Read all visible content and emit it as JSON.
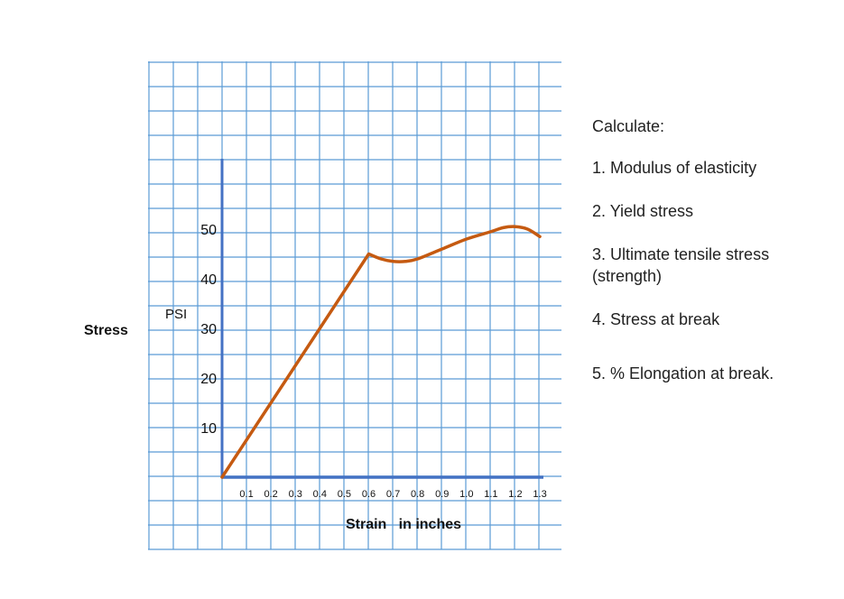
{
  "chart_data": {
    "type": "line",
    "x": [
      0,
      0.6,
      0.65,
      0.7,
      0.75,
      0.8,
      0.9,
      1.0,
      1.1,
      1.15,
      1.2,
      1.25,
      1.3
    ],
    "series": [
      {
        "values": [
          0,
          45,
          44,
          43.5,
          43.5,
          44,
          46,
          48,
          49.5,
          50.3,
          50.5,
          50,
          48.5
        ]
      }
    ],
    "x_ticks": [
      "0.1",
      "0.2",
      "0.3",
      "0.4",
      "0.5",
      "0.6",
      "0.7",
      "0.8",
      "0.9",
      "1.0",
      "1.1",
      "1.2",
      "1.3"
    ],
    "y_ticks": [
      "10",
      "20",
      "30",
      "40",
      "50"
    ],
    "ylabel": "Stress",
    "yunit": "PSI",
    "xlabel": "Strain   in inches",
    "xlim": [
      0,
      1.3
    ],
    "ylim": [
      0,
      65
    ],
    "grid": true,
    "colors": {
      "line": "#c55a11",
      "axis": "#4472c4",
      "grid": "#5b9bd5"
    }
  },
  "questions": {
    "title": "Calculate:",
    "items": [
      "1. Modulus of elasticity",
      "2. Yield stress",
      "3.  Ultimate tensile stress (strength)",
      "4. Stress at break",
      "5. % Elongation at break."
    ]
  }
}
